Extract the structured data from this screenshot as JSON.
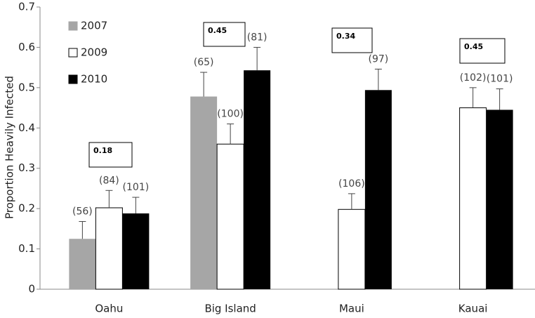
{
  "chart_data": {
    "type": "bar",
    "y_label": "Proportion Heavily Infected",
    "categories": [
      "Oahu",
      "Big Island",
      "Maui",
      "Kauai"
    ],
    "series": [
      {
        "name": "2007",
        "color": "#a6a6a6",
        "values": [
          0.125,
          0.478,
          null,
          null
        ],
        "errors": [
          0.043,
          0.06,
          null,
          null
        ],
        "sample_labels": [
          "(56)",
          "(65)",
          null,
          null
        ]
      },
      {
        "name": "2009",
        "color": "#ffffff",
        "values": [
          0.202,
          0.36,
          0.198,
          0.45
        ],
        "errors": [
          0.043,
          0.05,
          0.039,
          0.05
        ],
        "sample_labels": [
          "(84)",
          "(100)",
          "(106)",
          "(102)"
        ]
      },
      {
        "name": "2010",
        "color": "#000000",
        "values": [
          0.188,
          0.543,
          0.494,
          0.445
        ],
        "errors": [
          0.04,
          0.057,
          0.052,
          0.052
        ],
        "sample_labels": [
          "(101)",
          "(81)",
          "(97)",
          "(101)"
        ]
      }
    ],
    "annotations": [
      "0.18",
      "0.45",
      "0.34",
      "0.45"
    ],
    "ylim": [
      0,
      0.7
    ],
    "yticks": [
      {
        "value": 0,
        "label": "0"
      },
      {
        "value": 0.1,
        "label": "0.1"
      },
      {
        "value": 0.2,
        "label": "0.2"
      },
      {
        "value": 0.3,
        "label": "0.3"
      },
      {
        "value": 0.4,
        "label": "0.4"
      },
      {
        "value": 0.5,
        "label": "0.5"
      },
      {
        "value": 0.6,
        "label": "0.6"
      },
      {
        "value": 0.7,
        "label": "0.7"
      }
    ],
    "legend": "top-left"
  }
}
